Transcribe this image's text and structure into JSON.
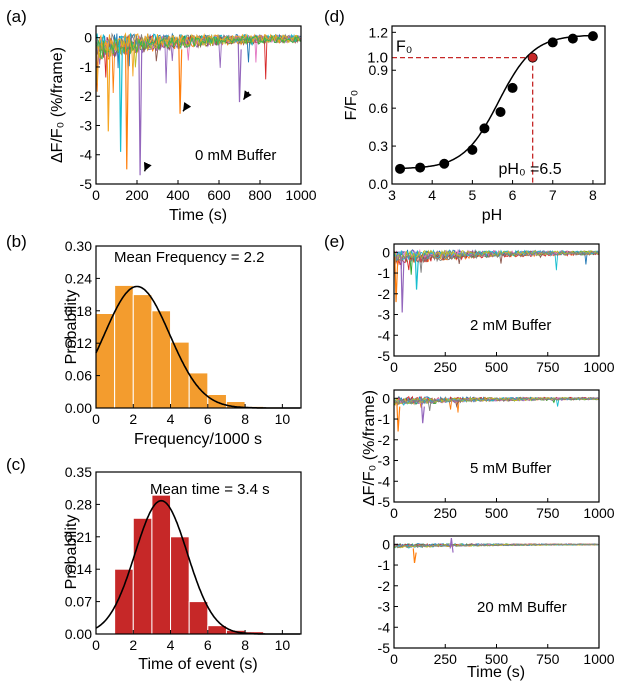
{
  "figure": {
    "panels": [
      {
        "letter": "(a)"
      },
      {
        "letter": "(b)"
      },
      {
        "letter": "(c)"
      },
      {
        "letter": "(d)"
      },
      {
        "letter": "(e)"
      }
    ],
    "e_shared_ylabel": "ΔF/F₀ (%/frame)"
  },
  "chart_data": [
    {
      "id": "a",
      "type": "line",
      "xlabel": "Time (s)",
      "ylabel": "ΔF/F₀ (%/frame)",
      "xlim": [
        0,
        1000
      ],
      "ylim": [
        -5,
        0.4
      ],
      "xticks": [
        0,
        200,
        400,
        600,
        800,
        1000
      ],
      "yticks": [
        -5,
        -4,
        -3,
        -2,
        -1,
        0
      ],
      "annotation": "0 mM Buffer",
      "series_count": 12,
      "series_colors": [
        "#1f77b4",
        "#ff7f0e",
        "#2ca02c",
        "#d62728",
        "#9467bd",
        "#8c564b",
        "#e377c2",
        "#17becf",
        "#bcbd22",
        "#7f7f7f",
        "#f5a623",
        "#3cb44b"
      ],
      "notable_spikes": [
        {
          "x": 150,
          "y": -4.5
        },
        {
          "x": 215,
          "y": -4.7
        },
        {
          "x": 120,
          "y": -3.9
        },
        {
          "x": 60,
          "y": -3.2
        },
        {
          "x": 410,
          "y": -2.6
        },
        {
          "x": 700,
          "y": -2.2
        }
      ],
      "arrows_point_to": [
        {
          "x": 222,
          "y": -4.6
        },
        {
          "x": 410,
          "y": -2.55
        },
        {
          "x": 705,
          "y": -2.15
        }
      ]
    },
    {
      "id": "b",
      "type": "bar",
      "xlabel": "Frequency/1000  s",
      "ylabel": "Probability",
      "xlim": [
        0,
        11
      ],
      "ylim": [
        0,
        0.3
      ],
      "xticks": [
        0,
        2,
        4,
        6,
        8,
        10
      ],
      "yticks": [
        0.0,
        0.06,
        0.12,
        0.18,
        0.24,
        0.3
      ],
      "bin_width": 1,
      "bin_starts": [
        0,
        1,
        2,
        3,
        4,
        5,
        6,
        7,
        8,
        9,
        10
      ],
      "values": [
        0.175,
        0.227,
        0.21,
        0.18,
        0.122,
        0.065,
        0.025,
        0.012,
        0.003,
        0.002,
        0.001
      ],
      "bar_color": "#f39c2e",
      "annotation": "Mean Frequency = 2.2",
      "annotation_color": "#f08a1c",
      "fit": {
        "type": "gaussian",
        "mu": 2.2,
        "sigma": 1.75,
        "amplitude": 0.225
      }
    },
    {
      "id": "c",
      "type": "bar",
      "xlabel": "Time of event  (s)",
      "ylabel": "Probability",
      "xlim": [
        0,
        11
      ],
      "ylim": [
        0,
        0.35
      ],
      "xticks": [
        0,
        2,
        4,
        6,
        8,
        10
      ],
      "yticks": [
        0.0,
        0.07,
        0.14,
        0.21,
        0.28,
        0.35
      ],
      "bin_width": 1,
      "bin_starts": [
        1,
        2,
        3,
        4,
        5,
        6,
        7,
        8,
        9
      ],
      "values": [
        0.14,
        0.25,
        0.3,
        0.21,
        0.07,
        0.018,
        0.008,
        0.005,
        0.002
      ],
      "bar_color": "#c62828",
      "annotation": "Mean time = 3.4 s",
      "annotation_color": "#c62828",
      "fit": {
        "type": "gaussian",
        "mu": 3.5,
        "sigma": 1.4,
        "amplitude": 0.288
      }
    },
    {
      "id": "d",
      "type": "scatter",
      "xlabel": "pH",
      "ylabel": "F/F₀",
      "xlim": [
        3,
        8.3
      ],
      "ylim": [
        0,
        1.25
      ],
      "xticks": [
        3,
        4,
        5,
        6,
        7,
        8
      ],
      "yticks": [
        0.0,
        0.3,
        0.6,
        0.9,
        1.2
      ],
      "x": [
        3.2,
        3.7,
        4.3,
        5.0,
        5.3,
        5.7,
        6.0,
        6.5,
        7.0,
        7.5,
        8.0
      ],
      "y": [
        0.12,
        0.13,
        0.16,
        0.27,
        0.44,
        0.57,
        0.76,
        1.0,
        1.12,
        1.15,
        1.17
      ],
      "highlight_index": 7,
      "highlight_color": "#c62828",
      "fit": {
        "type": "sigmoid",
        "bottom": 0.12,
        "top": 1.18,
        "x0": 5.65,
        "k": 2.3
      },
      "ref_value_label": "1.0",
      "ref_y": 1.0,
      "ref_x": 6.5,
      "top_label": "F₀",
      "bottom_label": "pH₀ =6.5",
      "ref_color": "#c62828"
    },
    {
      "id": "e1",
      "type": "line",
      "xlabel": "",
      "xlim": [
        0,
        1000
      ],
      "ylim": [
        -5,
        0.4
      ],
      "xticks": [
        0,
        250,
        500,
        750,
        1000
      ],
      "yticks": [
        -5,
        -4,
        -3,
        -2,
        -1,
        0
      ],
      "annotation": "2 mM Buffer",
      "series_count": 10,
      "notable_spikes": [
        {
          "x": 10,
          "y": -2.4
        },
        {
          "x": 40,
          "y": -2.9
        },
        {
          "x": 110,
          "y": -1.8
        }
      ]
    },
    {
      "id": "e2",
      "type": "line",
      "xlabel": "",
      "xlim": [
        0,
        1000
      ],
      "ylim": [
        -5,
        0.4
      ],
      "xticks": [
        0,
        250,
        500,
        750,
        1000
      ],
      "yticks": [
        -5,
        -4,
        -3,
        -2,
        -1,
        0
      ],
      "annotation": "5 mM Buffer",
      "series_count": 10,
      "notable_spikes": [
        {
          "x": 20,
          "y": -1.6
        },
        {
          "x": 140,
          "y": -1.2
        }
      ]
    },
    {
      "id": "e3",
      "type": "line",
      "xlabel": "Time (s)",
      "xlim": [
        0,
        1000
      ],
      "ylim": [
        -5,
        0.4
      ],
      "xticks": [
        0,
        250,
        500,
        750,
        1000
      ],
      "yticks": [
        -5,
        -4,
        -3,
        -2,
        -1,
        0
      ],
      "annotation": "20 mM Buffer",
      "series_count": 10,
      "notable_spikes": [
        {
          "x": 100,
          "y": -0.9
        },
        {
          "x": 280,
          "y": 0.3
        }
      ]
    }
  ]
}
